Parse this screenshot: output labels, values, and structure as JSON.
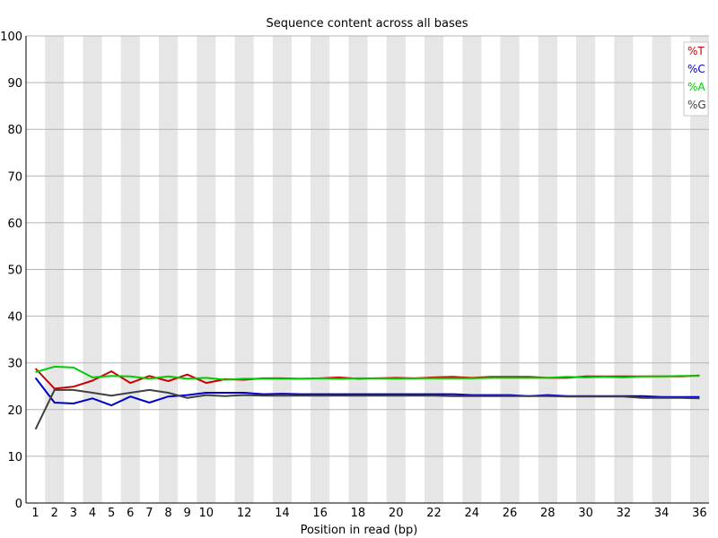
{
  "chart_data": {
    "type": "line",
    "title": "Sequence content across all bases",
    "xlabel": "Position in read (bp)",
    "ylabel": "",
    "ylim": [
      0,
      100
    ],
    "yticks": [
      "0",
      "10",
      "20",
      "30",
      "40",
      "50",
      "60",
      "70",
      "80",
      "90",
      "100"
    ],
    "x": [
      1,
      2,
      3,
      4,
      5,
      6,
      7,
      8,
      9,
      10,
      11,
      12,
      13,
      14,
      15,
      16,
      17,
      18,
      19,
      20,
      21,
      22,
      23,
      24,
      25,
      26,
      27,
      28,
      29,
      30,
      31,
      32,
      33,
      34,
      35,
      36
    ],
    "xtick_labels": [
      "1",
      "2",
      "3",
      "4",
      "5",
      "6",
      "7",
      "8",
      "9",
      "10",
      "12",
      "14",
      "16",
      "18",
      "20",
      "22",
      "24",
      "26",
      "28",
      "30",
      "32",
      "34",
      "36"
    ],
    "grid": true,
    "alternating_bands": true,
    "legend_position": "top-right",
    "series": [
      {
        "name": "%T",
        "color": "#cc0000",
        "values": [
          28.8,
          24.5,
          24.9,
          26.2,
          28.2,
          25.7,
          27.2,
          26.1,
          27.5,
          25.7,
          26.5,
          26.4,
          26.7,
          26.7,
          26.6,
          26.7,
          26.9,
          26.6,
          26.7,
          26.8,
          26.7,
          26.9,
          27.0,
          26.8,
          27.0,
          27.0,
          27.0,
          26.8,
          26.8,
          27.1,
          27.1,
          27.1,
          27.1,
          27.1,
          27.1,
          27.3
        ]
      },
      {
        "name": "%C",
        "color": "#0000cc",
        "values": [
          26.8,
          21.5,
          21.3,
          22.4,
          20.9,
          22.8,
          21.5,
          22.8,
          23.1,
          23.6,
          23.6,
          23.6,
          23.3,
          23.4,
          23.3,
          23.3,
          23.3,
          23.3,
          23.3,
          23.3,
          23.3,
          23.3,
          23.3,
          23.1,
          23.1,
          23.1,
          22.9,
          23.1,
          22.9,
          22.9,
          22.9,
          22.9,
          22.9,
          22.7,
          22.7,
          22.7
        ]
      },
      {
        "name": "%A",
        "color": "#00cc00",
        "values": [
          28.0,
          29.2,
          29.0,
          26.9,
          27.2,
          27.1,
          26.6,
          27.1,
          26.6,
          26.8,
          26.4,
          26.6,
          26.6,
          26.6,
          26.6,
          26.7,
          26.6,
          26.7,
          26.7,
          26.6,
          26.7,
          26.7,
          26.7,
          26.7,
          26.8,
          26.8,
          26.8,
          26.8,
          27.0,
          26.9,
          27.0,
          26.9,
          27.1,
          27.1,
          27.2,
          27.2
        ]
      },
      {
        "name": "%G",
        "color": "#404040",
        "values": [
          15.8,
          24.2,
          24.2,
          23.6,
          23.0,
          23.6,
          24.2,
          23.6,
          22.5,
          23.1,
          22.9,
          23.1,
          23.0,
          23.0,
          23.0,
          23.0,
          23.0,
          23.0,
          23.0,
          23.0,
          23.0,
          23.0,
          22.9,
          22.9,
          22.9,
          22.9,
          22.9,
          22.9,
          22.8,
          22.8,
          22.8,
          22.8,
          22.5,
          22.5,
          22.5,
          22.4
        ]
      }
    ]
  }
}
